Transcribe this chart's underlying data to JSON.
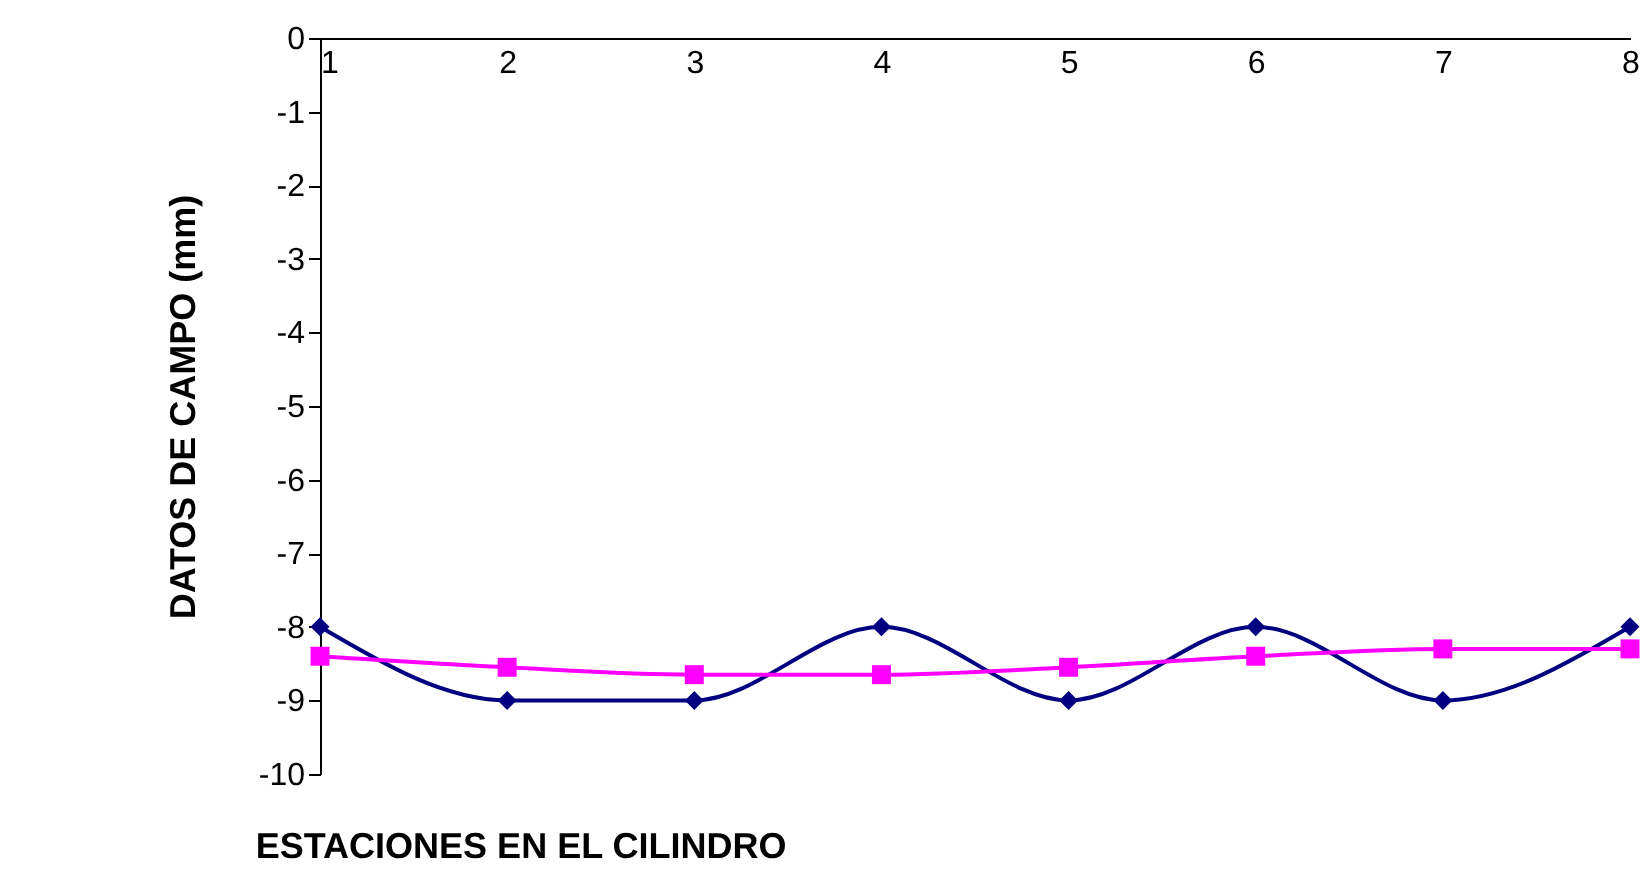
{
  "chart_data": {
    "type": "line",
    "xlabel": "ESTACIONES EN EL CILINDRO",
    "ylabel": "DATOS DE CAMPO (mm)",
    "categories": [
      "1",
      "2",
      "3",
      "4",
      "5",
      "6",
      "7",
      "8"
    ],
    "series": [
      {
        "color": "#000080",
        "marker": "diamond",
        "values": [
          -8,
          -9,
          -9,
          -8,
          -9,
          -8,
          -9,
          -8
        ]
      },
      {
        "color": "#ff00ff",
        "marker": "square",
        "values": [
          -8.4,
          -8.55,
          -8.65,
          -8.65,
          -8.55,
          -8.4,
          -8.3,
          -8.3
        ]
      }
    ],
    "ylim": [
      -10,
      0
    ],
    "yticks": [
      0,
      -1,
      -2,
      -3,
      -4,
      -5,
      -6,
      -7,
      -8,
      -9,
      -10
    ]
  }
}
